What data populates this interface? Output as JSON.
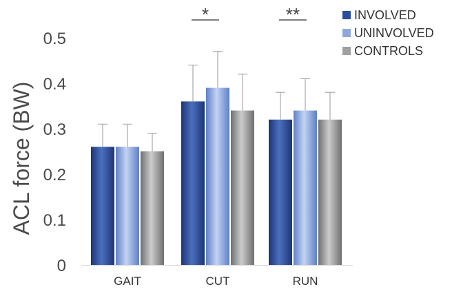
{
  "chart_data": {
    "type": "bar",
    "ylabel": "ACL force (BW)",
    "ylim": [
      0,
      0.5
    ],
    "yticks": [
      "0",
      "0.1",
      "0.2",
      "0.3",
      "0.4",
      "0.5"
    ],
    "categories": [
      "GAIT",
      "CUT",
      "RUN"
    ],
    "series": [
      {
        "name": "INVOLVED",
        "values": [
          0.26,
          0.36,
          0.32
        ],
        "errors": [
          0.05,
          0.08,
          0.06
        ],
        "color": "#2b4f9c"
      },
      {
        "name": "UNINVOLVED",
        "values": [
          0.26,
          0.39,
          0.34
        ],
        "errors": [
          0.05,
          0.08,
          0.07
        ],
        "color": "#8ea8dc"
      },
      {
        "name": "CONTROLS",
        "values": [
          0.25,
          0.34,
          0.32
        ],
        "errors": [
          0.04,
          0.08,
          0.06
        ],
        "color": "#a0a0a0"
      }
    ],
    "annotations": [
      {
        "category": "CUT",
        "text": "*"
      },
      {
        "category": "RUN",
        "text": "**"
      }
    ],
    "legend": "top-right",
    "grid": false
  }
}
